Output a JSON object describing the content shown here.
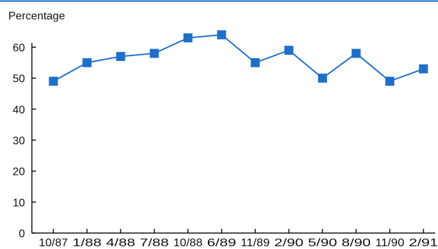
{
  "chart_data": {
    "type": "line",
    "title": "",
    "ylabel": "Percentage",
    "xlabel": "",
    "categories": [
      "10/87",
      "1/88",
      "4/88",
      "7/88",
      "10/88",
      "6/89",
      "11/89",
      "2/90",
      "5/90",
      "8/90",
      "11/90",
      "2/91"
    ],
    "series": [
      {
        "values": [
          49,
          55,
          57,
          58,
          63,
          64,
          55,
          59,
          50,
          58,
          49,
          53
        ]
      }
    ],
    "ylim": [
      0,
      60
    ],
    "yticks": [
      0,
      10,
      20,
      30,
      40,
      50,
      60
    ],
    "grid": false,
    "legend": "none",
    "colors": {
      "line": "#1f6fc8",
      "marker": "#1f6fc8",
      "top_rule": "#5a9ad8",
      "axis": "#111111"
    }
  }
}
